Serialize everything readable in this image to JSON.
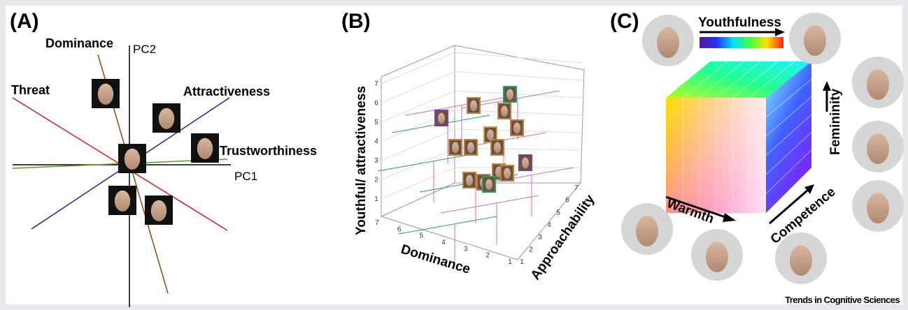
{
  "panel_a": {
    "label": "(A)",
    "axes": {
      "pc1": "PC1",
      "pc2": "PC2"
    },
    "traits": {
      "dominance": "Dominance",
      "threat": "Threat",
      "attractiveness": "Attractiveness",
      "trustworthiness": "Trustworthiness"
    }
  },
  "panel_b": {
    "label": "(B)",
    "y_axis": {
      "title": "Youthful/ attractiveness",
      "ticks": [
        1,
        2,
        3,
        4,
        5,
        6,
        7
      ]
    },
    "x_axis": {
      "title": "Dominance",
      "ticks": [
        7,
        6,
        5,
        4,
        3,
        2,
        1
      ]
    },
    "z_axis": {
      "title": "Approachability",
      "ticks": [
        1,
        2,
        3,
        4,
        5,
        6,
        7
      ]
    }
  },
  "panel_c": {
    "label": "(C)",
    "youthfulness": "Youthfulness",
    "femininity": "Femininity",
    "warmth": "Warmth",
    "competence": "Competence"
  },
  "footer": "Trends in Cognitive Sciences"
}
